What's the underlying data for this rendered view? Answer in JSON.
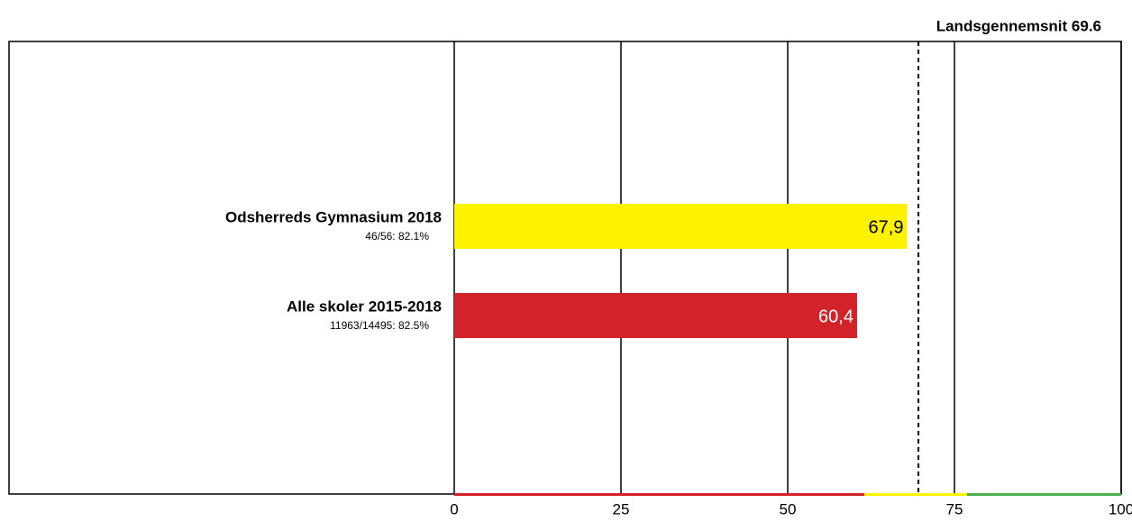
{
  "chart_data": {
    "type": "hbar",
    "reference": {
      "label": "Landsgennemsnit 69.6",
      "value": 69.6
    },
    "categories": [
      "Odsherreds Gymnasium 2018",
      "Alle skoler 2015-2018"
    ],
    "sublabels": [
      "46/56: 82.1%",
      "11963/14495: 82.5%"
    ],
    "values": [
      67.9,
      60.4
    ],
    "value_labels": [
      "67,9",
      "60,4"
    ],
    "colors": [
      "#fff200",
      "#d2232a"
    ],
    "value_label_colors": [
      "#000000",
      "#ffffff"
    ],
    "xlim": [
      0,
      100
    ],
    "xticks": [
      0,
      25,
      50,
      75,
      100
    ],
    "grid": true,
    "bands": [
      {
        "from": 0,
        "to": 61.5,
        "color": "#d2232a"
      },
      {
        "from": 61.5,
        "to": 76.9,
        "color": "#fff200"
      },
      {
        "from": 76.9,
        "to": 100,
        "color": "#4caf50"
      }
    ]
  }
}
